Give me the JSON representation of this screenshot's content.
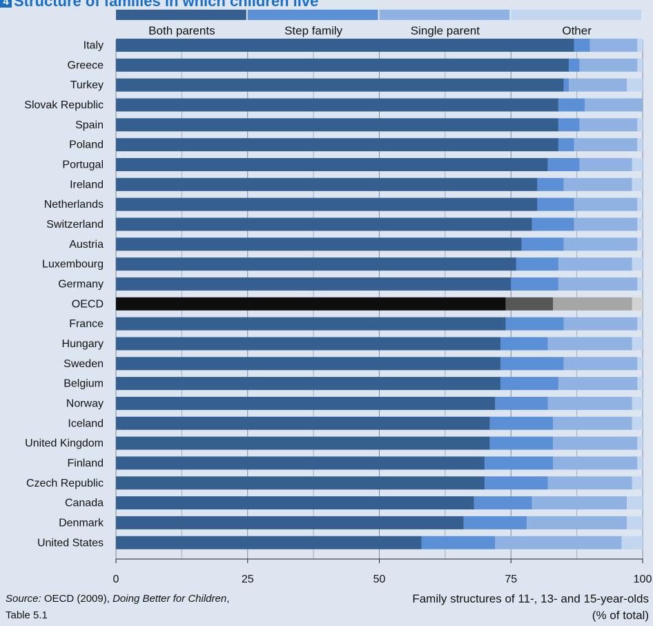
{
  "title": "Structure of families in which children live",
  "title_badge": "4",
  "source": {
    "prefix": "Source:",
    "org": "OECD (2009),",
    "publication": "Doing Better for Children",
    "table": ", Table 5.1"
  },
  "colors": {
    "both_parents": "#355f8f",
    "step_family": "#5b8fd6",
    "single_parent": "#8fb2e3",
    "other": "#c3d6ef",
    "highlight": [
      "#0e0e0e",
      "#575757",
      "#a6a6a6",
      "#d2d2d2"
    ],
    "background": "#dde5f1",
    "title": "#1a6fc4"
  },
  "chart_data": {
    "type": "bar",
    "orientation": "horizontal",
    "stacked": true,
    "title": "Structure of families in which children live",
    "xlabel_line1": "Family structures of 11-, 13- and 15-year-olds",
    "xlabel_line2": "(% of total)",
    "xlim": [
      0,
      100
    ],
    "xticks": [
      0,
      25,
      50,
      75,
      100
    ],
    "grid": true,
    "legend_position": "top",
    "highlight_category": "OECD",
    "categories": [
      "Italy",
      "Greece",
      "Turkey",
      "Slovak Republic",
      "Spain",
      "Poland",
      "Portugal",
      "Ireland",
      "Netherlands",
      "Switzerland",
      "Austria",
      "Luxembourg",
      "Germany",
      "OECD",
      "France",
      "Hungary",
      "Sweden",
      "Belgium",
      "Norway",
      "Iceland",
      "United Kingdom",
      "Finland",
      "Czech Republic",
      "Canada",
      "Denmark",
      "United States"
    ],
    "series": [
      {
        "name": "Both parents",
        "values": [
          87,
          86,
          85,
          84,
          84,
          84,
          82,
          80,
          80,
          79,
          77,
          76,
          75,
          74,
          74,
          73,
          73,
          73,
          72,
          71,
          71,
          70,
          70,
          68,
          66,
          58
        ]
      },
      {
        "name": "Step family",
        "values": [
          3,
          2,
          1,
          5,
          4,
          3,
          6,
          5,
          7,
          8,
          8,
          8,
          9,
          9,
          11,
          9,
          12,
          11,
          10,
          12,
          12,
          13,
          12,
          11,
          12,
          14
        ]
      },
      {
        "name": "Single parent",
        "values": [
          9,
          11,
          11,
          11,
          11,
          12,
          10,
          13,
          12,
          12,
          14,
          14,
          15,
          15,
          14,
          16,
          14,
          15,
          16,
          15,
          16,
          16,
          16,
          18,
          19,
          24
        ]
      },
      {
        "name": "Other",
        "values": [
          1,
          1,
          3,
          0,
          1,
          1,
          2,
          2,
          1,
          1,
          1,
          2,
          1,
          2,
          1,
          2,
          1,
          1,
          2,
          2,
          1,
          1,
          2,
          3,
          3,
          4
        ]
      }
    ]
  }
}
